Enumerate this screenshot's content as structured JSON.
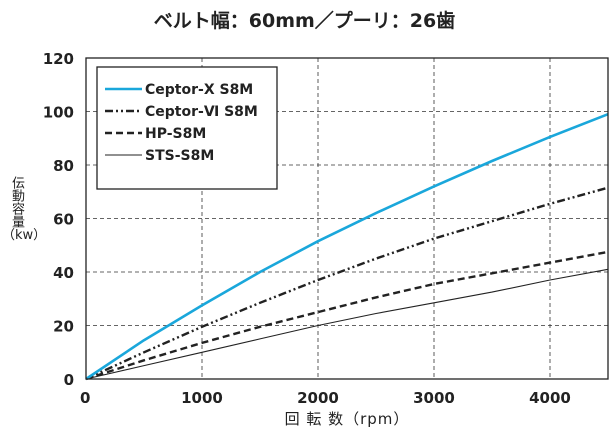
{
  "chart_data": {
    "type": "line",
    "title": "ベルト幅：60mm／プーリ：26歯",
    "xlabel": "回 転 数（rpm）",
    "ylabel": "伝動容量",
    "ylabel_unit": "（kw）",
    "xlim": [
      0,
      4500
    ],
    "ylim": [
      0,
      120
    ],
    "x_ticks": [
      0,
      1000,
      2000,
      3000,
      4000
    ],
    "y_ticks": [
      0,
      20,
      40,
      60,
      80,
      100,
      120
    ],
    "grid": true,
    "grid_style": "dashed",
    "legend_position": "top-left",
    "x": [
      0,
      500,
      1000,
      1500,
      2000,
      2500,
      3000,
      3500,
      4000,
      4500
    ],
    "series": [
      {
        "name": "Ceptor-Ⅹ S8M",
        "color": "#1aa7db",
        "dash": "solid",
        "width": 2.6,
        "values": [
          0,
          14.5,
          27.5,
          40,
          51.5,
          62,
          72,
          81.5,
          90.5,
          99
        ]
      },
      {
        "name": "Ceptor-Ⅵ S8M",
        "color": "#222222",
        "dash": "dashdotdot",
        "width": 2.4,
        "values": [
          0,
          10,
          19.5,
          28.5,
          37,
          45,
          52.5,
          59,
          65.5,
          71.5
        ]
      },
      {
        "name": "HP-S8M",
        "color": "#222222",
        "dash": "dashed",
        "width": 2.4,
        "values": [
          0,
          7,
          13.5,
          19.5,
          25,
          30.5,
          35.5,
          39.5,
          43.5,
          47.5
        ]
      },
      {
        "name": "STS-S8M",
        "color": "#222222",
        "dash": "solid",
        "width": 1.1,
        "values": [
          0,
          5,
          10,
          15,
          20,
          24.5,
          28.5,
          32.5,
          37,
          41
        ]
      }
    ]
  }
}
